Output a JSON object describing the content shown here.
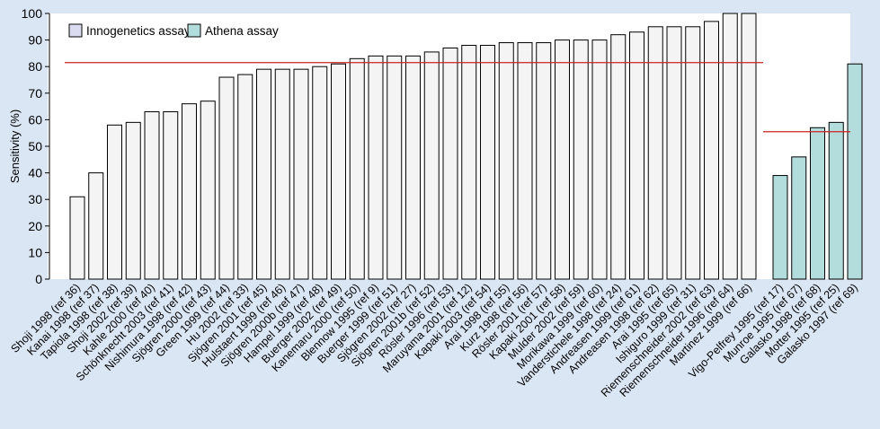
{
  "chart_data": {
    "type": "bar",
    "ylabel": "Sensitivity (%)",
    "ylim": [
      0,
      100
    ],
    "yticks": [
      0,
      10,
      20,
      30,
      40,
      50,
      60,
      70,
      80,
      90,
      100
    ],
    "grid": false,
    "legend_position": "top-left",
    "series": [
      {
        "name": "Innogenetics assay",
        "color": "#f4f4f4",
        "legend_color": "#dcdcf0",
        "reference_line": 81.5,
        "categories": [
          "Shoji 1998 (ref 36)",
          "Kanai 1998 (ref 37)",
          "Tapiola 1998 (ref 38)",
          "Shoji 2002 (ref 39)",
          "Kahle 2000 (ref 40)",
          "Schönknecht 2003 (ref 41)",
          "Nishimura 1998 (ref 42)",
          "Sjögren 2000 (ref 43)",
          "Green 1999 (ref 44)",
          "Hu 2002 (ref 33)",
          "Sjögren 2001 (ref 45)",
          "Hulstaert 1999 (ref 46)",
          "Sjögren 2000b (ref 47)",
          "Hampel 1999 (ref 48)",
          "Buerger 2002 (ref 49)",
          "Kanemaru 2000 (ref 50)",
          "Blennow 1995 (ref 9)",
          "Buerger 1999 (ref 51)",
          "Sjögren 2002 (ref 27)",
          "Sjögren 2001b (ref 52)",
          "Rösler 1996 (ref 53)",
          "Maruyama 2001 (ref 12)",
          "Kapaki 2003 (ref 54)",
          "Arai 1998 (ref 55)",
          "Kurz 1998 (ref 56)",
          "Rösler 2001 (ref 57)",
          "Kapaki 2001 (ref 58)",
          "Mulder 2002 (ref 59)",
          "Morikawa 1999 (ref 60)",
          "Vanderstichele 1998 (ref 24)",
          "Andreasen 1999 (ref 61)",
          "Andreasen 1998 (ref 62)",
          "Arai 1995 (ref 65)",
          "Ishiguro 1999 (ref 31)",
          "Riemenschneider 2002 (ref 63)",
          "Riemenschneider 1996 (ref 64)",
          "Martinez 1999 (ref 66)"
        ],
        "values": [
          31,
          40,
          58,
          59,
          63,
          63,
          66,
          67,
          76,
          77,
          79,
          79,
          79,
          80,
          81,
          83,
          84,
          84,
          84,
          85.5,
          87,
          88,
          88,
          89,
          89,
          89,
          90,
          90,
          90,
          92,
          93,
          95,
          95,
          95,
          97,
          100,
          100
        ]
      },
      {
        "name": "Athena assay",
        "color": "#b3dcdc",
        "legend_color": "#b3dcdc",
        "reference_line": 55.5,
        "categories": [
          "Vigo-Pelfrey 1995 (ref 17)",
          "Munroe 1995 (ref 67)",
          "Galasko 1998 (ref 68)",
          "Motter 1995 (ref 25)",
          "Galasko 1997 (ref 69)"
        ],
        "values": [
          39,
          46,
          57,
          59,
          81
        ]
      }
    ]
  }
}
